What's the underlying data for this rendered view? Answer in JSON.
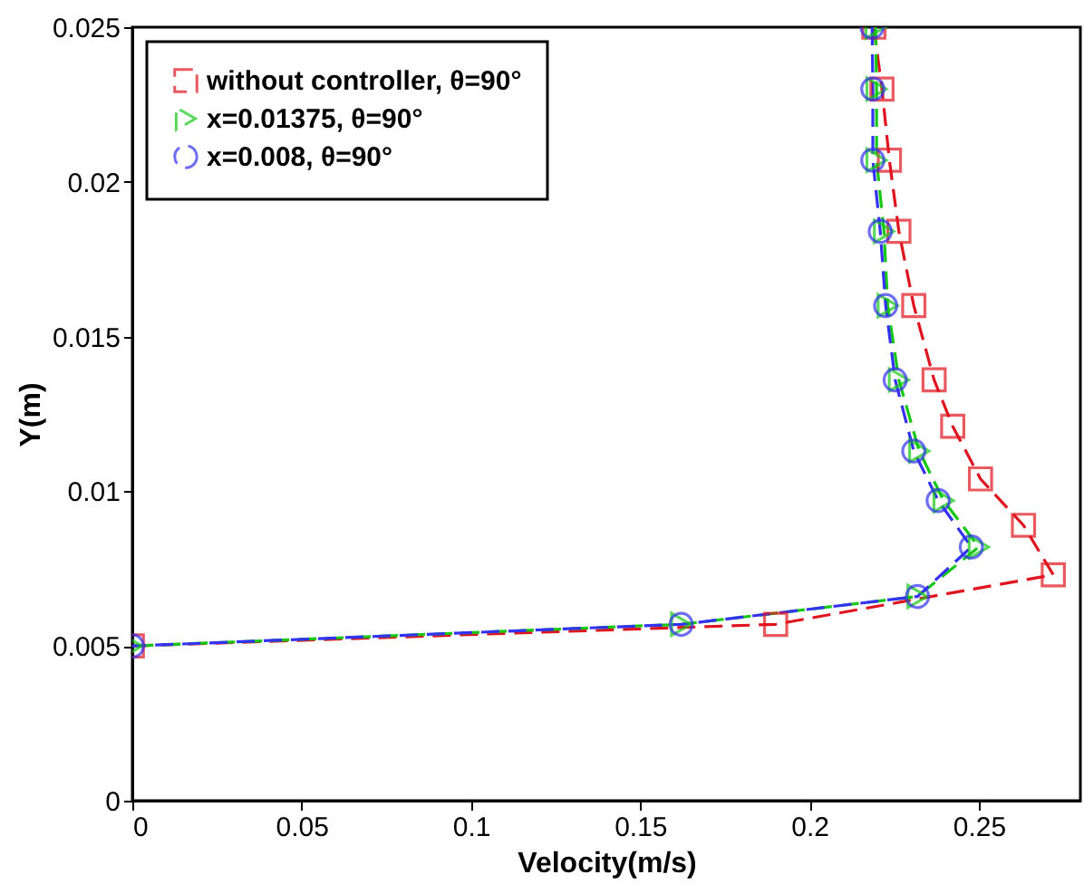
{
  "chart_data": {
    "type": "line",
    "xlabel": "Velocity(m/s)",
    "ylabel": "Y(m)",
    "xlim": [
      0,
      0.28
    ],
    "ylim": [
      0,
      0.025
    ],
    "xticks": [
      0,
      0.05,
      0.1,
      0.15,
      0.2,
      0.25
    ],
    "yticks": [
      0,
      0.005,
      0.01,
      0.015,
      0.02,
      0.025
    ],
    "grid": false,
    "legend": "top left",
    "series": [
      {
        "name": "without controller, θ=90°",
        "color": "#e0141e",
        "marker": "square",
        "line_style": "dashed",
        "x": [
          0.219,
          0.2214,
          0.2236,
          0.2264,
          0.2308,
          0.2368,
          0.2423,
          0.2505,
          0.2632,
          0.272,
          0.19,
          0
        ],
        "values": [
          0.025,
          0.023,
          0.0207,
          0.0184,
          0.016,
          0.0136,
          0.0121,
          0.0104,
          0.0089,
          0.0073,
          0.0057,
          0.005
        ]
      },
      {
        "name": "x=0.01375, θ=90°",
        "color": "#14c814",
        "marker": "triangle",
        "line_style": "dashed",
        "x": [
          0.2195,
          0.2198,
          0.2198,
          0.222,
          0.2231,
          0.2264,
          0.2324,
          0.2396,
          0.25,
          0.2319,
          0.1621,
          0
        ],
        "values": [
          0.025,
          0.023,
          0.0207,
          0.0184,
          0.016,
          0.0136,
          0.0113,
          0.0097,
          0.0082,
          0.0066,
          0.0057,
          0.005
        ]
      },
      {
        "name": "x=0.008, θ=90°",
        "color": "#3232f0",
        "marker": "circle",
        "line_style": "dashed",
        "x": [
          0.2185,
          0.2187,
          0.2187,
          0.2209,
          0.2225,
          0.2253,
          0.2308,
          0.238,
          0.2478,
          0.2319,
          0.1621,
          0
        ],
        "values": [
          0.025,
          0.023,
          0.0207,
          0.0184,
          0.016,
          0.0136,
          0.0113,
          0.0097,
          0.0082,
          0.0066,
          0.0057,
          0.005
        ]
      }
    ]
  }
}
